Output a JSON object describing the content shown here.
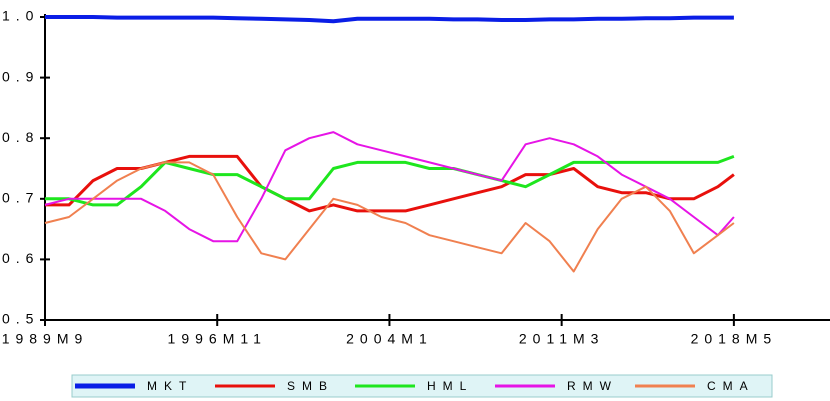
{
  "chart_data": {
    "type": "line",
    "x": [
      0,
      12,
      24,
      36,
      48,
      60,
      72,
      84,
      96,
      108,
      120,
      132,
      144,
      156,
      168,
      180,
      192,
      204,
      216,
      228,
      240,
      252,
      264,
      276,
      288,
      300,
      312,
      324,
      336,
      344
    ],
    "xlim": [
      0,
      392
    ],
    "xticks": [
      {
        "value": 0,
        "label": "1989M9"
      },
      {
        "value": 86,
        "label": "1996M11"
      },
      {
        "value": 172,
        "label": "2004M1"
      },
      {
        "value": 258,
        "label": "2011M3"
      },
      {
        "value": 344,
        "label": "2018M5"
      }
    ],
    "ylim": [
      0.5,
      1.0
    ],
    "yticks": [
      0.5,
      0.6,
      0.7,
      0.8,
      0.9,
      {
        "value": 1.0,
        "label": "1.0"
      }
    ],
    "grid": false,
    "legend": "bottom",
    "series": [
      {
        "name": "MKT",
        "color": "#0a1ee6",
        "values": [
          1.0,
          1.0,
          1.0,
          0.999,
          0.999,
          0.999,
          0.999,
          0.999,
          0.998,
          0.997,
          0.996,
          0.995,
          0.993,
          0.997,
          0.997,
          0.997,
          0.997,
          0.996,
          0.996,
          0.995,
          0.995,
          0.996,
          0.996,
          0.997,
          0.997,
          0.998,
          0.998,
          0.999,
          0.999,
          0.999
        ]
      },
      {
        "name": "SMB",
        "color": "#e8100c",
        "values": [
          0.69,
          0.69,
          0.73,
          0.75,
          0.75,
          0.76,
          0.77,
          0.77,
          0.77,
          0.72,
          0.7,
          0.68,
          0.69,
          0.68,
          0.68,
          0.68,
          0.69,
          0.7,
          0.71,
          0.72,
          0.74,
          0.74,
          0.75,
          0.72,
          0.71,
          0.71,
          0.7,
          0.7,
          0.72,
          0.74
        ]
      },
      {
        "name": "HML",
        "color": "#1ee61e",
        "values": [
          0.7,
          0.7,
          0.69,
          0.69,
          0.72,
          0.76,
          0.75,
          0.74,
          0.74,
          0.72,
          0.7,
          0.7,
          0.75,
          0.76,
          0.76,
          0.76,
          0.75,
          0.75,
          0.74,
          0.73,
          0.72,
          0.74,
          0.76,
          0.76,
          0.76,
          0.76,
          0.76,
          0.76,
          0.76,
          0.77
        ]
      },
      {
        "name": "RMW",
        "color": "#e614e6",
        "values": [
          0.69,
          0.7,
          0.7,
          0.7,
          0.7,
          0.68,
          0.65,
          0.63,
          0.63,
          0.7,
          0.78,
          0.8,
          0.81,
          0.79,
          0.78,
          0.77,
          0.76,
          0.75,
          0.74,
          0.73,
          0.79,
          0.8,
          0.79,
          0.77,
          0.74,
          0.72,
          0.7,
          0.67,
          0.64,
          0.67
        ]
      },
      {
        "name": "CMA",
        "color": "#f08050",
        "values": [
          0.66,
          0.67,
          0.7,
          0.73,
          0.75,
          0.76,
          0.76,
          0.74,
          0.67,
          0.61,
          0.6,
          0.65,
          0.7,
          0.69,
          0.67,
          0.66,
          0.64,
          0.63,
          0.62,
          0.61,
          0.66,
          0.63,
          0.58,
          0.65,
          0.7,
          0.72,
          0.68,
          0.61,
          0.64,
          0.66
        ]
      }
    ]
  }
}
